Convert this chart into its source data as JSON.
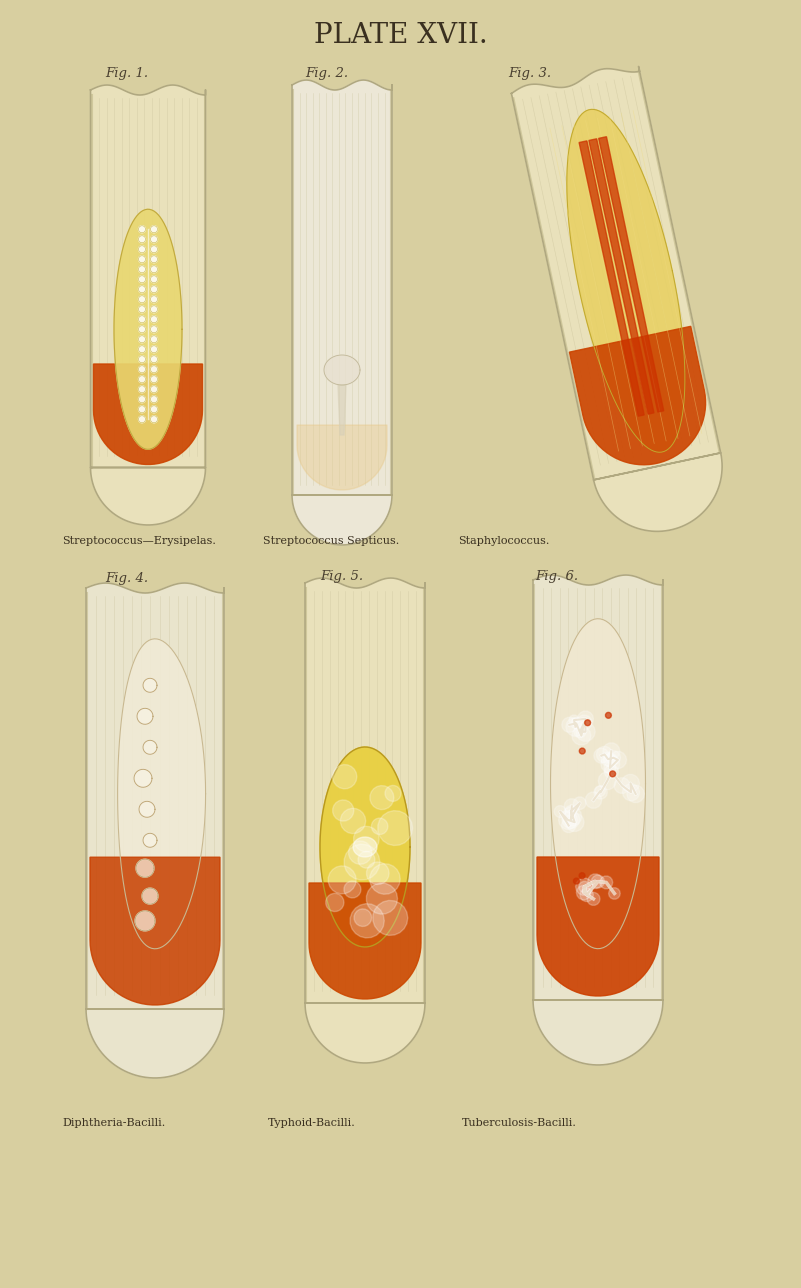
{
  "title": "PLATE XVII.",
  "bg_color": "#d8cfa0",
  "title_color": "#3a3020",
  "title_fontsize": 20,
  "label_color": "#4a4030",
  "caption_color": "#3a3020",
  "fig_labels": [
    "Fig. 1.",
    "Fig. 2.",
    "Fig. 3.",
    "Fig. 4.",
    "Fig. 5.",
    "Fig. 6."
  ],
  "captions": [
    "Streptococcus—Erysipelas.",
    "Streptococcus Septicus.",
    "Staphylococcus.",
    "Diphtheria-Bacilli.",
    "Typhoid-Bacilli.",
    "Tuberculosis-Bacilli."
  ],
  "glass_outline": "#b0a880",
  "glass_lines": "#c8c098",
  "orange": "#cc4400",
  "yellow_agar": "#e8d060",
  "cream_agar": "#f0e8c0",
  "pale_agar": "#f0ead8"
}
